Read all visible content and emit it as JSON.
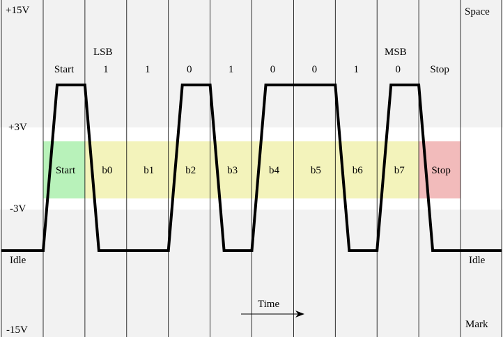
{
  "axis_labels": {
    "top": "+15V",
    "upper_threshold": "+3V",
    "lower_threshold": "-3V",
    "bottom": "-15V"
  },
  "idle_left": "Idle",
  "idle_right": "Idle",
  "space_label": "Space",
  "mark_label": "Mark",
  "lsb_label": "LSB",
  "msb_label": "MSB",
  "time_label": "Time",
  "top_labels": [
    "Start",
    "1",
    "1",
    "0",
    "1",
    "0",
    "0",
    "1",
    "0",
    "Stop"
  ],
  "box_labels": [
    "Start",
    "b0",
    "b1",
    "b2",
    "b3",
    "b4",
    "b5",
    "b6",
    "b7",
    "Stop"
  ],
  "signal_levels": [
    "high",
    "low",
    "low",
    "high",
    "low",
    "high",
    "high",
    "low",
    "high",
    "low"
  ],
  "colors": {
    "band_gray": "#f2f2f2",
    "start": "#b8f2ba",
    "data": "#f3f3bb",
    "stop": "#f2bbbb",
    "line": "#000000"
  }
}
